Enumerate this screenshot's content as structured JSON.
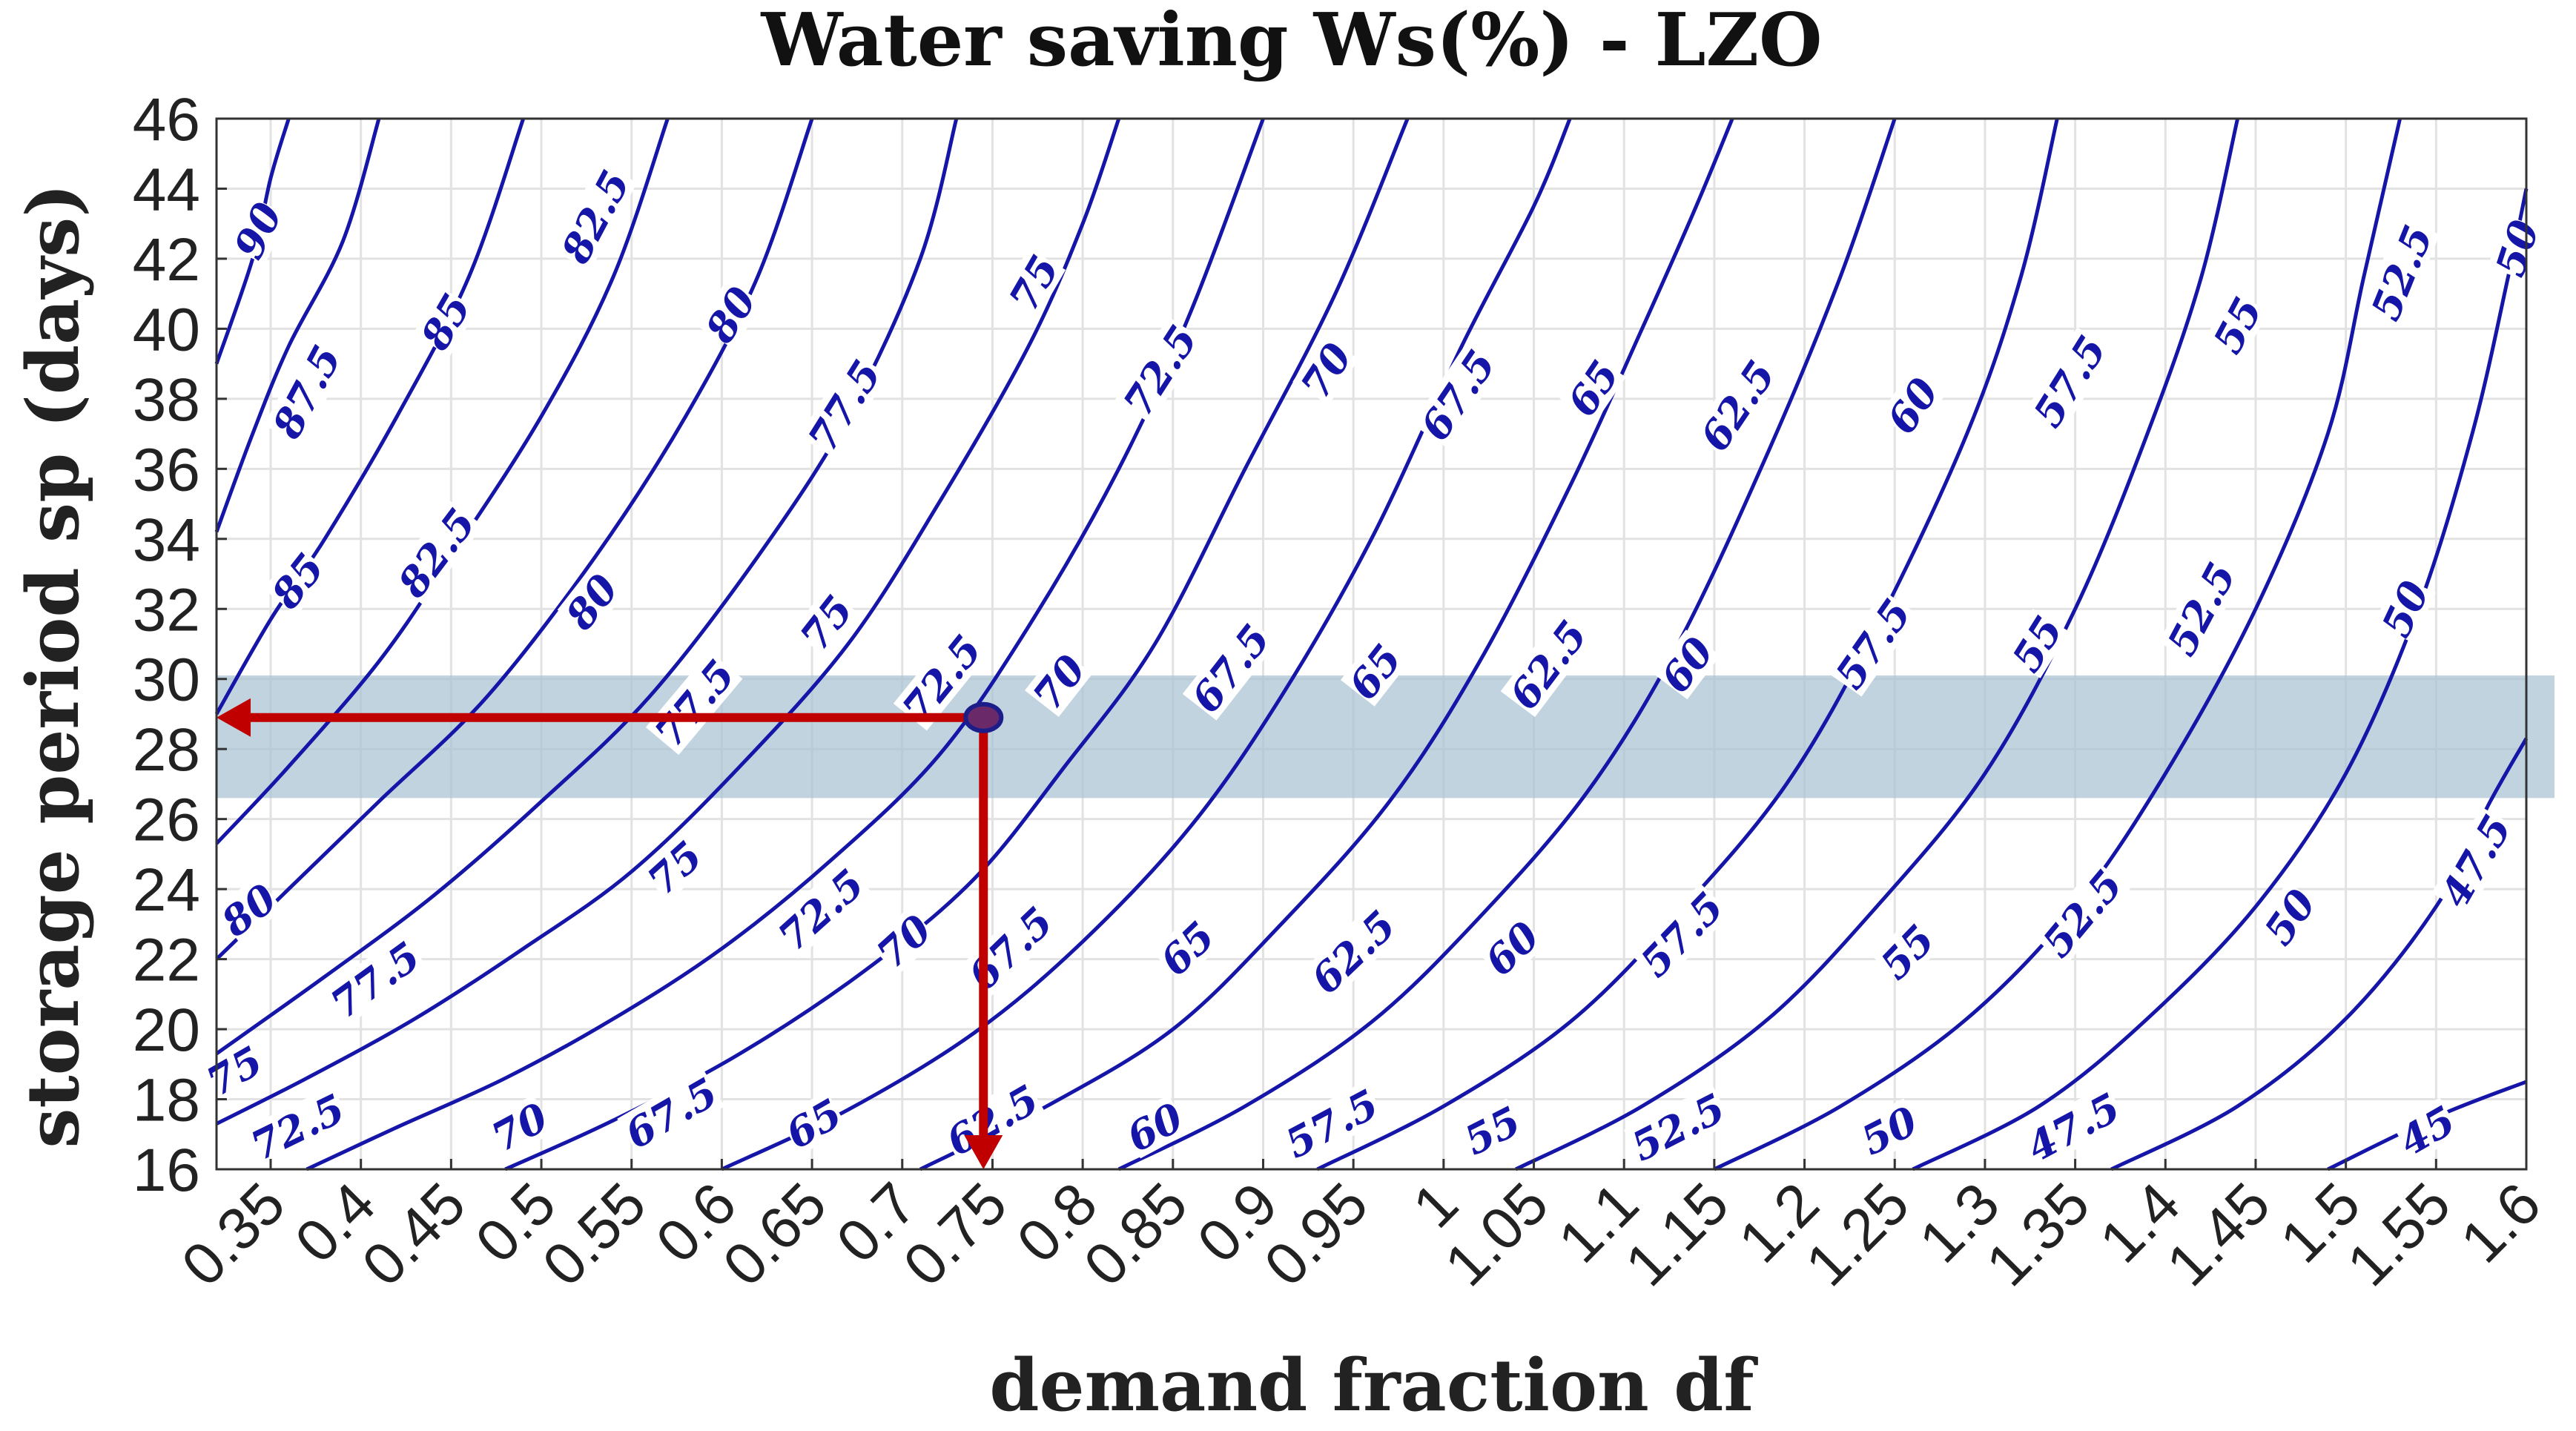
{
  "chart_data": {
    "type": "contour",
    "title": "Water saving  Ws(%) - LZO",
    "xlabel": "demand fraction df",
    "ylabel": "storage period sp (days)",
    "xlim": [
      0.32,
      1.6
    ],
    "ylim": [
      16,
      46
    ],
    "x_ticks": [
      0.35,
      0.4,
      0.45,
      0.5,
      0.55,
      0.6,
      0.65,
      0.7,
      0.75,
      0.8,
      0.85,
      0.9,
      0.95,
      1,
      1.05,
      1.1,
      1.15,
      1.2,
      1.25,
      1.3,
      1.35,
      1.4,
      1.45,
      1.5,
      1.55,
      1.6
    ],
    "x_tick_labels": [
      "0.35",
      "0.4",
      "0.45",
      "0.5",
      "0.55",
      "0.6",
      "0.65",
      "0.7",
      "0.75",
      "0.8",
      "0.85",
      "0.9",
      "0.95",
      "1",
      "1.05",
      "1.1",
      "1.15",
      "1.2",
      "1.25",
      "1.3",
      "1.35",
      "1.4",
      "1.45",
      "1.5",
      "1.55",
      "1.6"
    ],
    "y_ticks": [
      16,
      18,
      20,
      22,
      24,
      26,
      28,
      30,
      32,
      34,
      36,
      38,
      40,
      42,
      44,
      46
    ],
    "y_tick_labels": [
      "16",
      "18",
      "20",
      "22",
      "24",
      "26",
      "28",
      "30",
      "32",
      "34",
      "36",
      "38",
      "40",
      "42",
      "44",
      "46"
    ],
    "grid": true,
    "contour_color": "#1515a8",
    "contours": [
      {
        "level": 90,
        "points": [
          [
            0.32,
            39.0
          ],
          [
            0.34,
            42.0
          ],
          [
            0.35,
            44.3
          ],
          [
            0.36,
            46.0
          ]
        ]
      },
      {
        "level": 87.5,
        "points": [
          [
            0.32,
            34.2
          ],
          [
            0.34,
            37.0
          ],
          [
            0.36,
            39.5
          ],
          [
            0.39,
            42.5
          ],
          [
            0.41,
            46.0
          ]
        ]
      },
      {
        "level": 85,
        "points": [
          [
            0.32,
            29.0
          ],
          [
            0.35,
            31.7
          ],
          [
            0.38,
            34.0
          ],
          [
            0.42,
            37.5
          ],
          [
            0.46,
            41.5
          ],
          [
            0.49,
            46.0
          ]
        ]
      },
      {
        "level": 82.5,
        "points": [
          [
            0.32,
            25.3
          ],
          [
            0.36,
            27.5
          ],
          [
            0.41,
            30.5
          ],
          [
            0.45,
            33.5
          ],
          [
            0.5,
            37.5
          ],
          [
            0.54,
            41.5
          ],
          [
            0.57,
            46.0
          ]
        ]
      },
      {
        "level": 80,
        "points": [
          [
            0.32,
            22.0
          ],
          [
            0.36,
            24.0
          ],
          [
            0.41,
            26.5
          ],
          [
            0.47,
            29.5
          ],
          [
            0.53,
            33.5
          ],
          [
            0.58,
            37.5
          ],
          [
            0.62,
            41.5
          ],
          [
            0.65,
            46.0
          ]
        ]
      },
      {
        "level": 77.5,
        "points": [
          [
            0.32,
            19.3
          ],
          [
            0.38,
            21.5
          ],
          [
            0.44,
            23.8
          ],
          [
            0.5,
            26.5
          ],
          [
            0.56,
            29.5
          ],
          [
            0.62,
            33.5
          ],
          [
            0.67,
            37.5
          ],
          [
            0.71,
            42.0
          ],
          [
            0.73,
            46.0
          ]
        ]
      },
      {
        "level": 75,
        "points": [
          [
            0.32,
            17.3
          ],
          [
            0.37,
            18.6
          ],
          [
            0.43,
            20.3
          ],
          [
            0.49,
            22.3
          ],
          [
            0.55,
            24.5
          ],
          [
            0.61,
            27.5
          ],
          [
            0.67,
            31.0
          ],
          [
            0.72,
            35.0
          ],
          [
            0.77,
            39.5
          ],
          [
            0.8,
            43.0
          ],
          [
            0.82,
            46.0
          ]
        ]
      },
      {
        "level": 72.5,
        "points": [
          [
            0.37,
            16.0
          ],
          [
            0.42,
            17.2
          ],
          [
            0.48,
            18.6
          ],
          [
            0.54,
            20.3
          ],
          [
            0.6,
            22.3
          ],
          [
            0.66,
            24.8
          ],
          [
            0.72,
            27.8
          ],
          [
            0.77,
            31.5
          ],
          [
            0.82,
            36.0
          ],
          [
            0.86,
            40.5
          ],
          [
            0.9,
            46.0
          ]
        ]
      },
      {
        "level": 70,
        "points": [
          [
            0.48,
            16.0
          ],
          [
            0.54,
            17.4
          ],
          [
            0.61,
            19.3
          ],
          [
            0.68,
            21.7
          ],
          [
            0.74,
            24.3
          ],
          [
            0.79,
            27.5
          ],
          [
            0.84,
            31.0
          ],
          [
            0.89,
            36.0
          ],
          [
            0.94,
            41.0
          ],
          [
            0.98,
            46.0
          ]
        ]
      },
      {
        "level": 67.5,
        "points": [
          [
            0.6,
            16.0
          ],
          [
            0.67,
            17.7
          ],
          [
            0.74,
            19.9
          ],
          [
            0.8,
            22.5
          ],
          [
            0.86,
            25.8
          ],
          [
            0.91,
            29.5
          ],
          [
            0.96,
            34.0
          ],
          [
            1.01,
            39.5
          ],
          [
            1.05,
            43.5
          ],
          [
            1.07,
            46.0
          ]
        ]
      },
      {
        "level": 65,
        "points": [
          [
            0.71,
            16.0
          ],
          [
            0.78,
            17.8
          ],
          [
            0.85,
            20.0
          ],
          [
            0.91,
            23.0
          ],
          [
            0.97,
            26.5
          ],
          [
            1.02,
            30.5
          ],
          [
            1.07,
            35.5
          ],
          [
            1.11,
            40.0
          ],
          [
            1.14,
            43.5
          ],
          [
            1.16,
            46.0
          ]
        ]
      },
      {
        "level": 62.5,
        "points": [
          [
            0.82,
            16.0
          ],
          [
            0.89,
            17.8
          ],
          [
            0.96,
            20.2
          ],
          [
            1.02,
            23.2
          ],
          [
            1.08,
            26.8
          ],
          [
            1.13,
            31.0
          ],
          [
            1.18,
            36.5
          ],
          [
            1.22,
            41.5
          ],
          [
            1.25,
            46.0
          ]
        ]
      },
      {
        "level": 60,
        "points": [
          [
            0.93,
            16.0
          ],
          [
            1.0,
            17.8
          ],
          [
            1.07,
            20.2
          ],
          [
            1.13,
            23.3
          ],
          [
            1.19,
            27.0
          ],
          [
            1.24,
            31.5
          ],
          [
            1.29,
            37.0
          ],
          [
            1.32,
            41.5
          ],
          [
            1.34,
            46.0
          ]
        ]
      },
      {
        "level": 57.5,
        "points": [
          [
            1.04,
            16.0
          ],
          [
            1.11,
            17.8
          ],
          [
            1.18,
            20.3
          ],
          [
            1.24,
            23.5
          ],
          [
            1.3,
            27.3
          ],
          [
            1.35,
            32.0
          ],
          [
            1.39,
            37.0
          ],
          [
            1.42,
            41.5
          ],
          [
            1.44,
            46.0
          ]
        ]
      },
      {
        "level": 55,
        "points": [
          [
            1.15,
            16.0
          ],
          [
            1.22,
            17.8
          ],
          [
            1.29,
            20.3
          ],
          [
            1.35,
            23.5
          ],
          [
            1.4,
            27.3
          ],
          [
            1.45,
            32.0
          ],
          [
            1.49,
            37.0
          ],
          [
            1.51,
            41.5
          ],
          [
            1.53,
            46.0
          ]
        ]
      },
      {
        "level": 52.5,
        "points": [
          [
            1.26,
            16.0
          ],
          [
            1.33,
            17.8
          ],
          [
            1.39,
            20.3
          ],
          [
            1.45,
            23.5
          ],
          [
            1.5,
            27.3
          ],
          [
            1.54,
            32.0
          ],
          [
            1.57,
            37.0
          ],
          [
            1.59,
            41.5
          ],
          [
            1.6,
            44.0
          ]
        ]
      },
      {
        "level": 50,
        "points": [
          [
            1.37,
            16.0
          ],
          [
            1.44,
            17.8
          ],
          [
            1.5,
            20.3
          ],
          [
            1.55,
            23.5
          ],
          [
            1.58,
            26.5
          ],
          [
            1.6,
            28.3
          ]
        ]
      },
      {
        "level": 47.5,
        "points": [
          [
            1.49,
            16.0
          ],
          [
            1.55,
            17.5
          ],
          [
            1.6,
            18.5
          ]
        ]
      }
    ],
    "contour_labels": [
      {
        "text": "90",
        "x": 0.343,
        "y": 42.8,
        "rot": -64
      },
      {
        "text": "87.5",
        "x": 0.37,
        "y": 38.2,
        "rot": -62
      },
      {
        "text": "85",
        "x": 0.447,
        "y": 40.2,
        "rot": -60
      },
      {
        "text": "82.5",
        "x": 0.53,
        "y": 43.2,
        "rot": -62
      },
      {
        "text": "80",
        "x": 0.605,
        "y": 40.4,
        "rot": -58
      },
      {
        "text": "77.5",
        "x": 0.668,
        "y": 37.8,
        "rot": -58
      },
      {
        "text": "75",
        "x": 0.773,
        "y": 41.3,
        "rot": -60
      },
      {
        "text": "72.5",
        "x": 0.843,
        "y": 38.8,
        "rot": -57
      },
      {
        "text": "70",
        "x": 0.935,
        "y": 38.8,
        "rot": -57
      },
      {
        "text": "67.5",
        "x": 1.008,
        "y": 38.1,
        "rot": -56
      },
      {
        "text": "65",
        "x": 1.083,
        "y": 38.3,
        "rot": -56
      },
      {
        "text": "62.5",
        "x": 1.163,
        "y": 37.8,
        "rot": -56
      },
      {
        "text": "60",
        "x": 1.26,
        "y": 37.8,
        "rot": -56
      },
      {
        "text": "57.5",
        "x": 1.347,
        "y": 38.5,
        "rot": -58
      },
      {
        "text": "55",
        "x": 1.44,
        "y": 40.1,
        "rot": -62
      },
      {
        "text": "52.5",
        "x": 1.531,
        "y": 41.6,
        "rot": -68
      },
      {
        "text": "50",
        "x": 1.595,
        "y": 42.3,
        "rot": -72
      },
      {
        "text": "85",
        "x": 0.365,
        "y": 32.8,
        "rot": -52
      },
      {
        "text": "82.5",
        "x": 0.442,
        "y": 33.6,
        "rot": -53
      },
      {
        "text": "80",
        "x": 0.528,
        "y": 32.2,
        "rot": -52
      },
      {
        "text": "77.5",
        "x": 0.585,
        "y": 29.3,
        "rot": -50
      },
      {
        "text": "75",
        "x": 0.658,
        "y": 31.6,
        "rot": -52
      },
      {
        "text": "72.5",
        "x": 0.722,
        "y": 30.0,
        "rot": -51
      },
      {
        "text": "70",
        "x": 0.787,
        "y": 29.9,
        "rot": -52
      },
      {
        "text": "67.5",
        "x": 0.882,
        "y": 30.3,
        "rot": -52
      },
      {
        "text": "65",
        "x": 0.962,
        "y": 30.2,
        "rot": -52
      },
      {
        "text": "62.5",
        "x": 1.058,
        "y": 30.4,
        "rot": -53
      },
      {
        "text": "60",
        "x": 1.135,
        "y": 30.4,
        "rot": -53
      },
      {
        "text": "57.5",
        "x": 1.238,
        "y": 31.0,
        "rot": -55
      },
      {
        "text": "55",
        "x": 1.329,
        "y": 31.0,
        "rot": -58
      },
      {
        "text": "52.5",
        "x": 1.42,
        "y": 32.0,
        "rot": -62
      },
      {
        "text": "50",
        "x": 1.533,
        "y": 32.0,
        "rot": -65
      },
      {
        "text": "80",
        "x": 0.338,
        "y": 23.4,
        "rot": -38
      },
      {
        "text": "77.5",
        "x": 0.408,
        "y": 21.4,
        "rot": -36
      },
      {
        "text": "75",
        "x": 0.33,
        "y": 18.8,
        "rot": -30
      },
      {
        "text": "72.5",
        "x": 0.365,
        "y": 17.2,
        "rot": -26
      },
      {
        "text": "75",
        "x": 0.574,
        "y": 24.6,
        "rot": -42
      },
      {
        "text": "72.5",
        "x": 0.655,
        "y": 23.4,
        "rot": -42
      },
      {
        "text": "70",
        "x": 0.701,
        "y": 22.5,
        "rot": -42
      },
      {
        "text": "67.5",
        "x": 0.76,
        "y": 22.3,
        "rot": -44
      },
      {
        "text": "65",
        "x": 0.858,
        "y": 22.3,
        "rot": -44
      },
      {
        "text": "62.5",
        "x": 0.95,
        "y": 22.2,
        "rot": -44
      },
      {
        "text": "60",
        "x": 1.038,
        "y": 22.3,
        "rot": -44
      },
      {
        "text": "57.5",
        "x": 1.132,
        "y": 22.7,
        "rot": -46
      },
      {
        "text": "55",
        "x": 1.257,
        "y": 22.2,
        "rot": -46
      },
      {
        "text": "52.5",
        "x": 1.354,
        "y": 23.3,
        "rot": -50
      },
      {
        "text": "50",
        "x": 1.469,
        "y": 23.2,
        "rot": -55
      },
      {
        "text": "47.5",
        "x": 1.572,
        "y": 24.8,
        "rot": -60
      },
      {
        "text": "70",
        "x": 0.488,
        "y": 17.2,
        "rot": -28
      },
      {
        "text": "67.5",
        "x": 0.572,
        "y": 17.6,
        "rot": -30
      },
      {
        "text": "65",
        "x": 0.651,
        "y": 17.3,
        "rot": -30
      },
      {
        "text": "62.5",
        "x": 0.75,
        "y": 17.4,
        "rot": -30
      },
      {
        "text": "60",
        "x": 0.84,
        "y": 17.2,
        "rot": -28
      },
      {
        "text": "57.5",
        "x": 0.938,
        "y": 17.3,
        "rot": -28
      },
      {
        "text": "55",
        "x": 1.027,
        "y": 17.1,
        "rot": -27
      },
      {
        "text": "52.5",
        "x": 1.13,
        "y": 17.2,
        "rot": -27
      },
      {
        "text": "50",
        "x": 1.247,
        "y": 17.1,
        "rot": -27
      },
      {
        "text": "47.5",
        "x": 1.349,
        "y": 17.2,
        "rot": -28
      },
      {
        "text": "45",
        "x": 1.545,
        "y": 17.1,
        "rot": -30
      }
    ],
    "highlight_band": {
      "y_from": 26.6,
      "y_to": 30.1,
      "color": "#a9c2d2"
    },
    "marker": {
      "x": 0.745,
      "y": 28.9,
      "color": "#1d1d8a"
    },
    "arrows": [
      {
        "from": [
          0.745,
          28.9
        ],
        "to": [
          0.32,
          28.9
        ],
        "color": "#c00000"
      },
      {
        "from": [
          0.745,
          28.9
        ],
        "to": [
          0.745,
          16.0
        ],
        "color": "#c00000"
      }
    ]
  }
}
